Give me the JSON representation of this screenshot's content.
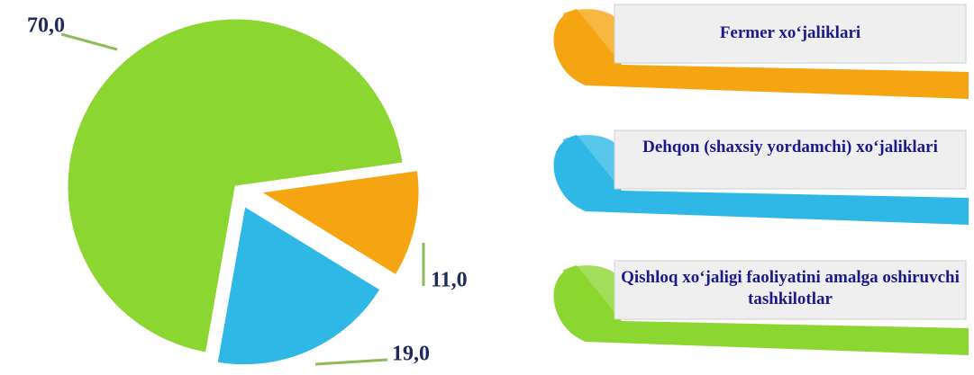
{
  "chart_data": {
    "type": "pie",
    "categories": [
      "Fermer xo‘jaliklari",
      "Dehqon (shaxsiy yordamchi) xo‘jaliklari",
      "Qishloq xo‘jaligi faoliyatini amalga oshiruvchi tashkilotlar"
    ],
    "values": [
      11,
      19,
      70
    ],
    "value_labels": [
      "11,0",
      "19,0",
      "70,0"
    ],
    "colors": [
      "#f5a511",
      "#2fb8e6",
      "#8bd630"
    ]
  }
}
